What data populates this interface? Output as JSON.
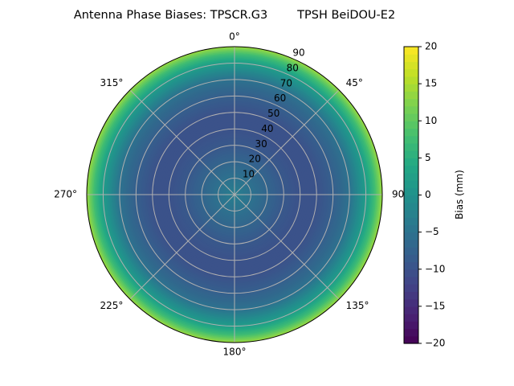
{
  "chart_data": {
    "type": "heatmap",
    "projection": "polar",
    "title": "Antenna Phase Biases: TPSCR.G3        TPSH BeiDOU-E2",
    "colormap": "viridis",
    "angle_ticks": [
      {
        "angle": 0,
        "label": "0°"
      },
      {
        "angle": 45,
        "label": "45°"
      },
      {
        "angle": 90,
        "label": "90°"
      },
      {
        "angle": 135,
        "label": "135°"
      },
      {
        "angle": 180,
        "label": "180°"
      },
      {
        "angle": 225,
        "label": "225°"
      },
      {
        "angle": 270,
        "label": "270°"
      },
      {
        "angle": 315,
        "label": "315°"
      }
    ],
    "radial_ticks": [
      10,
      20,
      30,
      40,
      50,
      60,
      70,
      80,
      90
    ],
    "radial_range": [
      0,
      90
    ],
    "radial_label_angle": 22.5,
    "grid": true,
    "bias_profile": {
      "r": [
        0,
        10,
        20,
        30,
        40,
        50,
        60,
        70,
        80,
        85,
        90
      ],
      "bias_mm": [
        -3,
        -5,
        -7,
        -9,
        -10,
        -10,
        -8,
        -5,
        2,
        7,
        14
      ]
    },
    "colorbar": {
      "label": "Bias (mm)",
      "min": -20,
      "max": 20,
      "ticks": [
        -20,
        -15,
        -10,
        -5,
        0,
        5,
        10,
        15,
        20
      ]
    }
  }
}
